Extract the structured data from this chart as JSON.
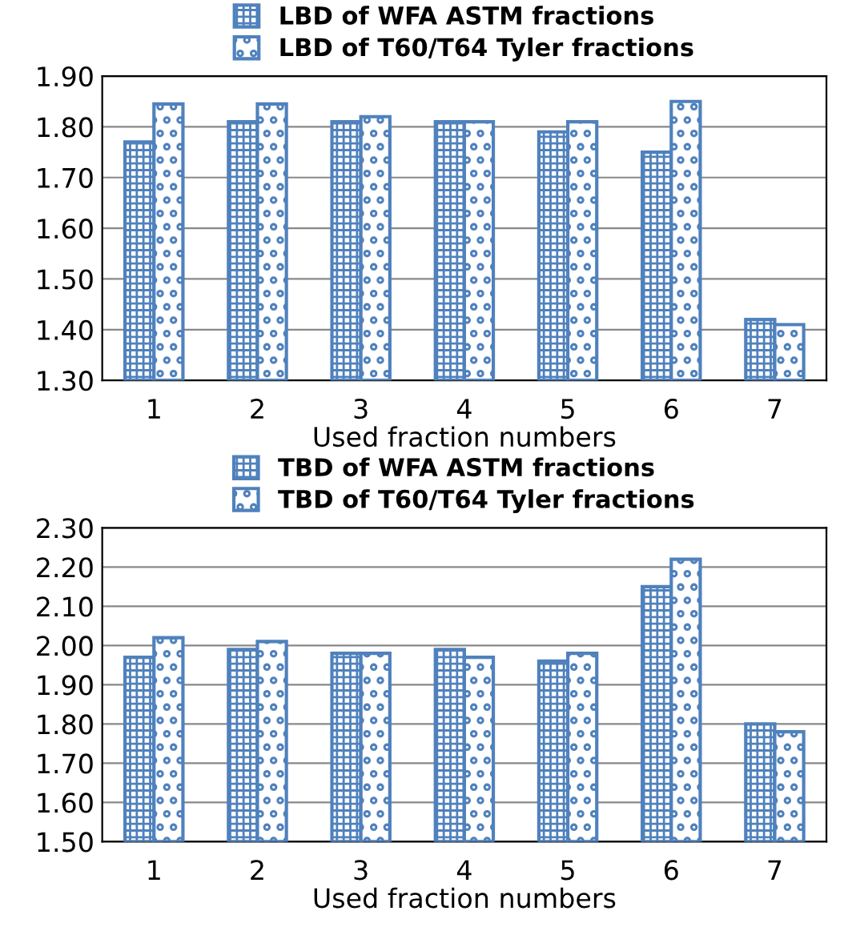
{
  "chart_data": [
    {
      "type": "bar",
      "xlabel": "Used fraction numbers",
      "categories": [
        "1",
        "2",
        "3",
        "4",
        "5",
        "6",
        "7"
      ],
      "series": [
        {
          "name": "LBD of WFA ASTM fractions",
          "color": "#4f81bd",
          "values": [
            1.77,
            1.81,
            1.81,
            1.81,
            1.79,
            1.75,
            1.42
          ]
        },
        {
          "name": "LBD of T60/T64 Tyler fractions",
          "color": "#4f81bd",
          "values": [
            1.845,
            1.845,
            1.82,
            1.81,
            1.81,
            1.85,
            1.41
          ]
        }
      ],
      "ylim": [
        1.3,
        1.9
      ],
      "yticks": [
        {
          "value": 1.3,
          "label": "1.30"
        },
        {
          "value": 1.4,
          "label": "1.40"
        },
        {
          "value": 1.5,
          "label": "1.50"
        },
        {
          "value": 1.6,
          "label": "1.60"
        },
        {
          "value": 1.7,
          "label": "1.70"
        },
        {
          "value": 1.8,
          "label": "1.80"
        },
        {
          "value": 1.9,
          "label": "1.90"
        }
      ],
      "grid": "y",
      "legend": "top"
    },
    {
      "type": "bar",
      "xlabel": "Used fraction numbers",
      "categories": [
        "1",
        "2",
        "3",
        "4",
        "5",
        "6",
        "7"
      ],
      "series": [
        {
          "name": "TBD of WFA ASTM fractions",
          "color": "#4f81bd",
          "values": [
            1.97,
            1.99,
            1.98,
            1.99,
            1.96,
            2.15,
            1.8
          ]
        },
        {
          "name": "TBD of T60/T64 Tyler fractions",
          "color": "#4f81bd",
          "values": [
            2.02,
            2.01,
            1.98,
            1.97,
            1.98,
            2.22,
            1.78
          ]
        }
      ],
      "ylim": [
        1.5,
        2.3
      ],
      "yticks": [
        {
          "value": 1.5,
          "label": "1.50"
        },
        {
          "value": 1.6,
          "label": "1.60"
        },
        {
          "value": 1.7,
          "label": "1.70"
        },
        {
          "value": 1.8,
          "label": "1.80"
        },
        {
          "value": 1.9,
          "label": "1.90"
        },
        {
          "value": 2.0,
          "label": "2.00"
        },
        {
          "value": 2.1,
          "label": "2.10"
        },
        {
          "value": 2.2,
          "label": "2.20"
        },
        {
          "value": 2.3,
          "label": "2.30"
        }
      ],
      "grid": "y",
      "legend": "top"
    }
  ]
}
